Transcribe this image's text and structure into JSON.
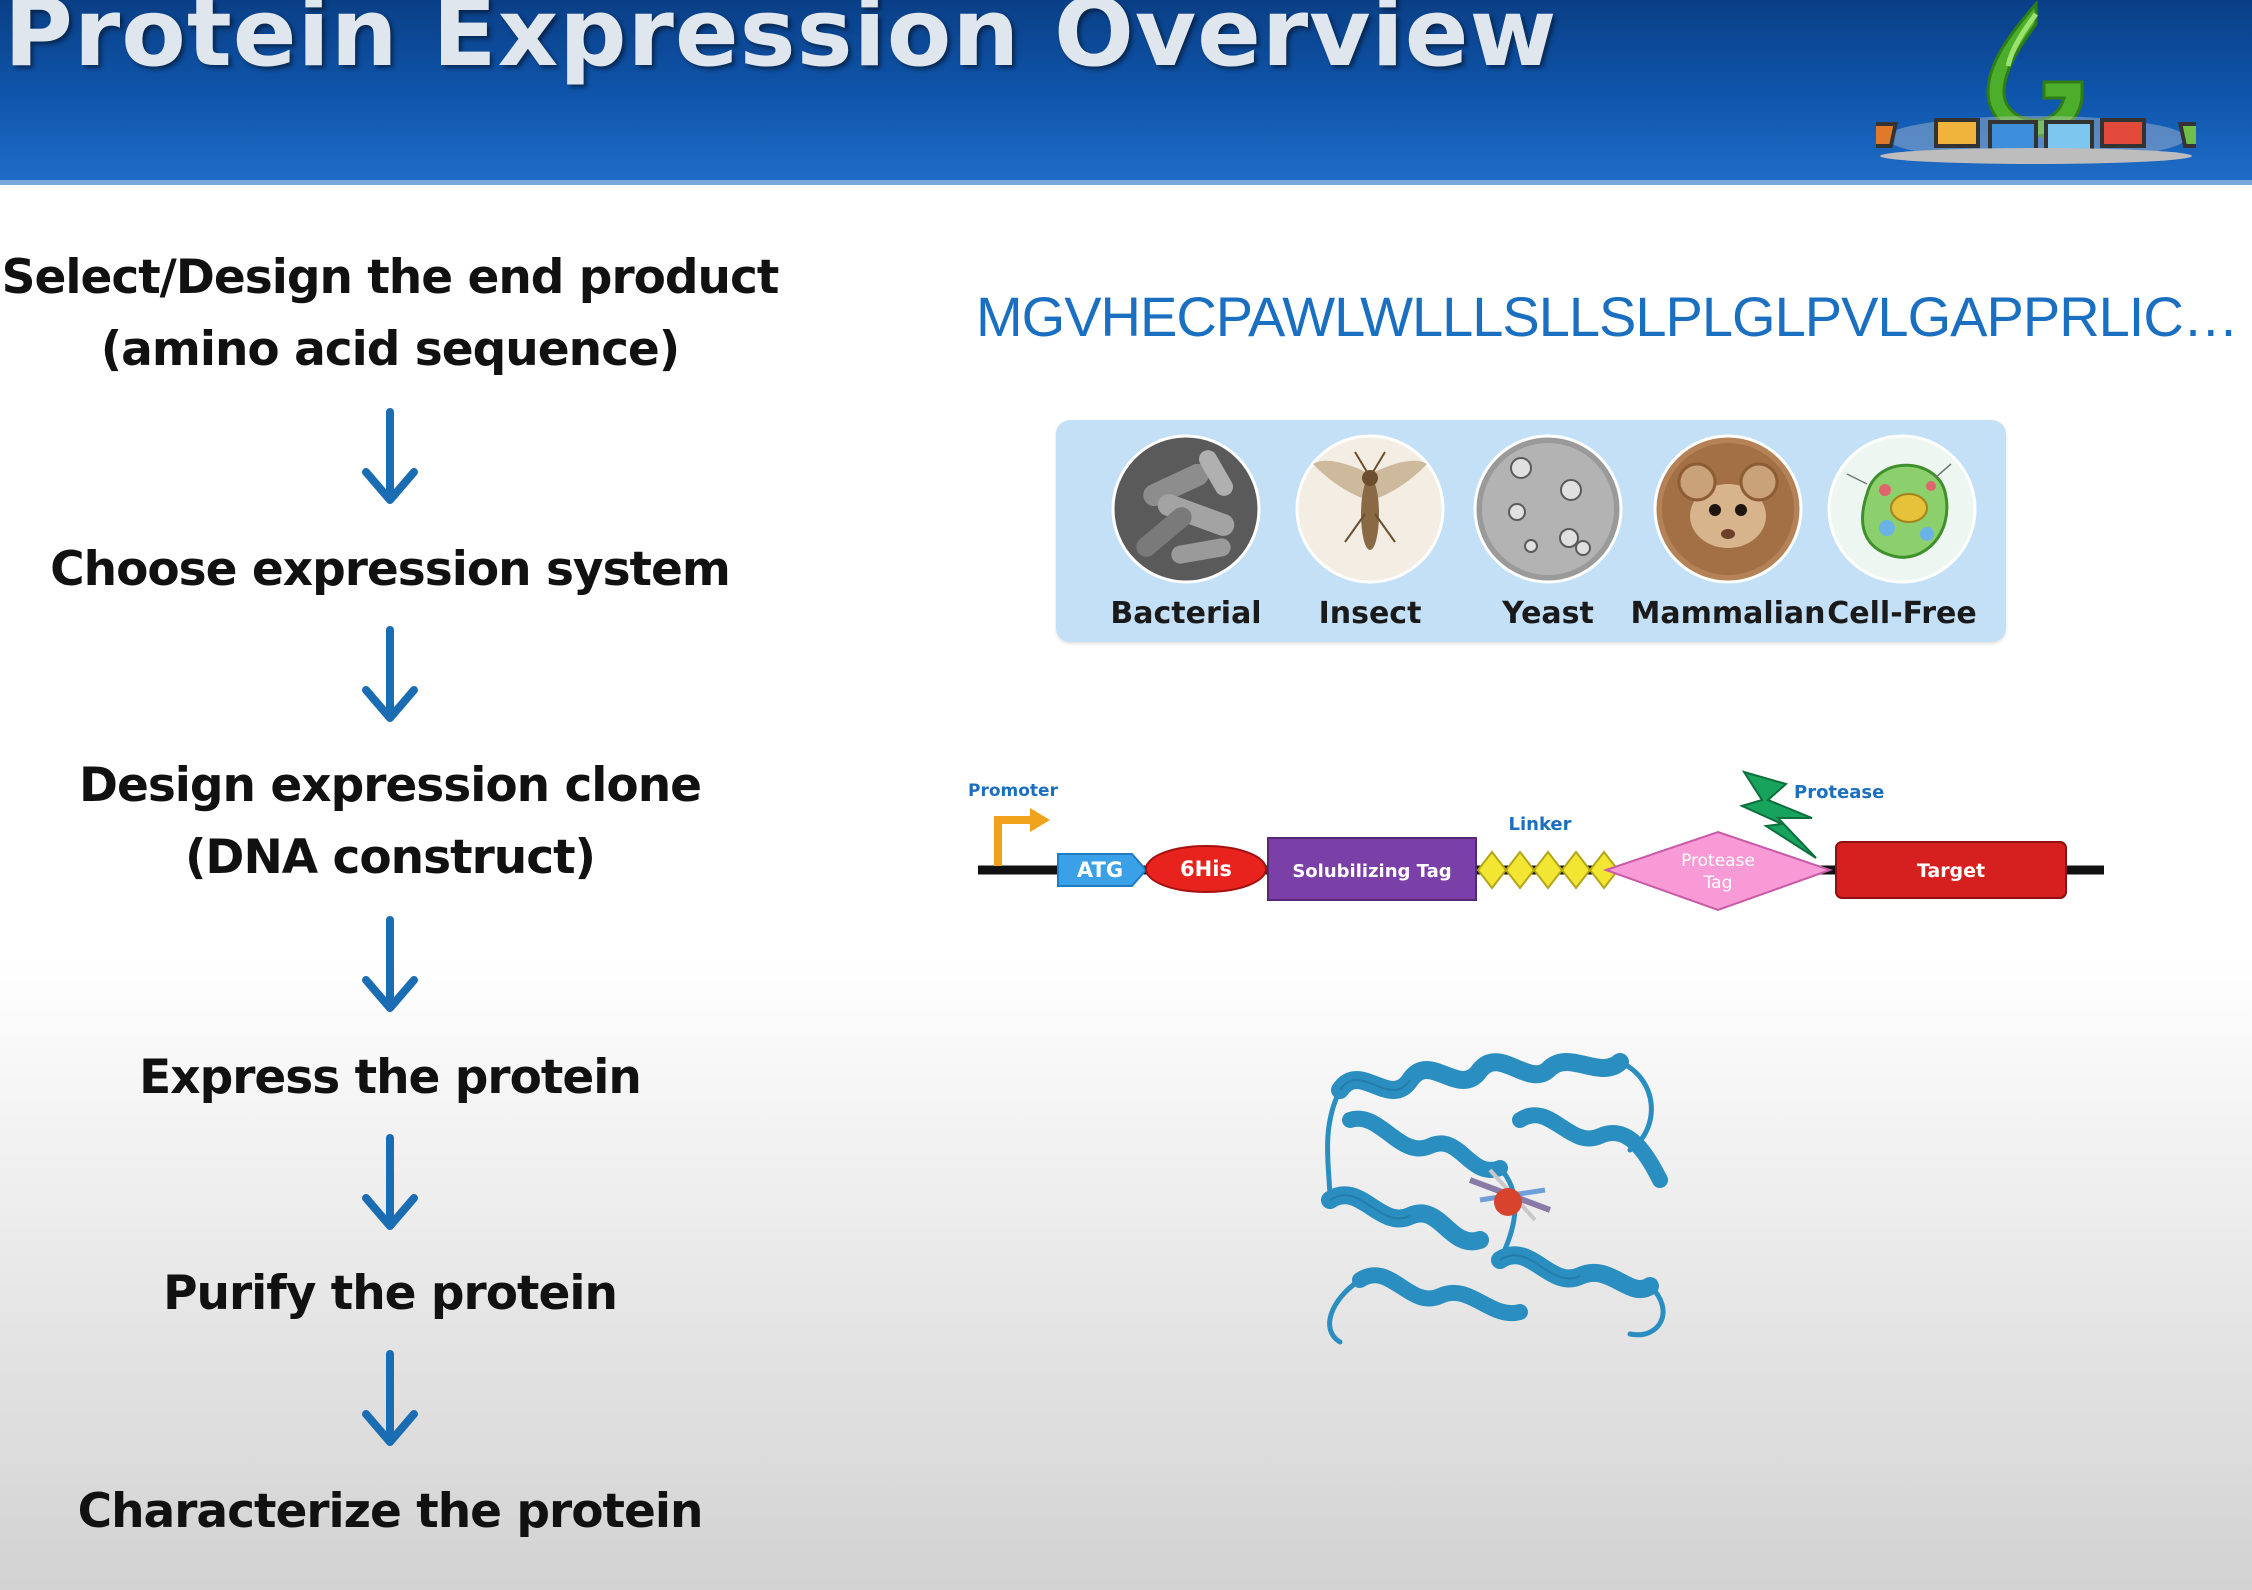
{
  "header": {
    "title": "Protein Expression Overview"
  },
  "steps": [
    {
      "line1": "Select/Design the end product",
      "line2": "(amino acid sequence)"
    },
    {
      "line1": "Choose expression system"
    },
    {
      "line1": "Design expression clone",
      "line2": "(DNA construct)"
    },
    {
      "line1": "Express the protein"
    },
    {
      "line1": "Purify the protein"
    },
    {
      "line1": "Characterize the protein"
    }
  ],
  "amino_acid_sequence": "MGVHECPAWLWLLLSLLSLPLGLPVLGAPPRLIC…",
  "expression_systems": [
    {
      "label": "Bacterial"
    },
    {
      "label": "Insect"
    },
    {
      "label": "Yeast"
    },
    {
      "label": "Mammalian"
    },
    {
      "label": "Cell-Free"
    }
  ],
  "dna_construct": {
    "promoter": "Promoter",
    "atg": "ATG",
    "his_tag": "6His",
    "solubilizing_tag": "Solubilizing Tag",
    "linker": "Linker",
    "protease_tag_line1": "Protease",
    "protease_tag_line2": "Tag",
    "protease": "Protease",
    "target": "Target"
  },
  "colors": {
    "header_blue": "#0f56ad",
    "arrow_blue": "#1a6cb3",
    "sequence_blue": "#1b6fc0",
    "panel_blue": "#c3e0f7",
    "atg": "#3aa0e8",
    "his_tag": "#e8231e",
    "solubilizing_tag": "#7b3fa8",
    "linker": "#f3e632",
    "protease_tag": "#f79ad6",
    "protease": "#17a35c",
    "target": "#d61f1f",
    "protein": "#2a8fc0"
  },
  "icons": {
    "logo": "gbiosciences-logo",
    "step_arrow": "arrow-down-icon"
  }
}
